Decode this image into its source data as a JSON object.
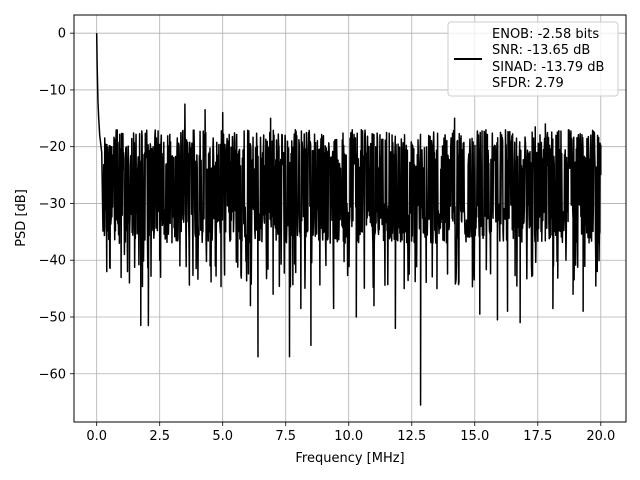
{
  "chart_data": {
    "type": "line",
    "title": "",
    "xlabel": "Frequency [MHz]",
    "ylabel": "PSD [dB]",
    "xlim": [
      -0.9,
      21.0
    ],
    "ylim": [
      -68.5,
      3.2
    ],
    "x_ticks": [
      0.0,
      2.5,
      5.0,
      7.5,
      10.0,
      12.5,
      15.0,
      17.5,
      20.0
    ],
    "x_tick_labels": [
      "0.0",
      "2.5",
      "5.0",
      "7.5",
      "10.0",
      "12.5",
      "15.0",
      "17.5",
      "20.0"
    ],
    "y_ticks": [
      0,
      -10,
      -20,
      -30,
      -40,
      -50,
      -60
    ],
    "y_tick_labels": [
      "0",
      "−10",
      "−20",
      "−30",
      "−40",
      "−50",
      "−60"
    ],
    "grid": true,
    "legend_position": "top-right",
    "legend_text": [
      "ENOB: -2.58 bits",
      "SNR: -13.65 dB",
      "SINAD: -13.79 dB",
      "SFDR: 2.79"
    ],
    "series_color": "#000000",
    "series": [
      {
        "x_range": [
          0.0,
          20.0
        ],
        "noise_band_db": [
          -37,
          -17
        ],
        "points": [
          {
            "x": 0.0,
            "y": 0.0
          },
          {
            "x": 0.02,
            "y": -6
          },
          {
            "x": 0.05,
            "y": -12
          },
          {
            "x": 0.08,
            "y": -15
          },
          {
            "x": 0.12,
            "y": -18
          },
          {
            "x": 0.2,
            "y": -21
          },
          {
            "x": 0.3,
            "y": -29
          },
          {
            "x": 0.4,
            "y": -42
          },
          {
            "x": 0.6,
            "y": -20
          },
          {
            "x": 0.9,
            "y": -37
          },
          {
            "x": 1.1,
            "y": -39
          },
          {
            "x": 1.3,
            "y": -44
          },
          {
            "x": 1.75,
            "y": -51.5
          },
          {
            "x": 2.05,
            "y": -51.5
          },
          {
            "x": 2.5,
            "y": -40
          },
          {
            "x": 3.3,
            "y": -41
          },
          {
            "x": 3.5,
            "y": -12.5
          },
          {
            "x": 4.0,
            "y": -40
          },
          {
            "x": 4.3,
            "y": -13.5
          },
          {
            "x": 4.5,
            "y": -41
          },
          {
            "x": 5.0,
            "y": -14
          },
          {
            "x": 6.1,
            "y": -48
          },
          {
            "x": 6.4,
            "y": -57
          },
          {
            "x": 6.9,
            "y": -15
          },
          {
            "x": 7.0,
            "y": -46
          },
          {
            "x": 7.65,
            "y": -57
          },
          {
            "x": 8.1,
            "y": -48.5
          },
          {
            "x": 8.5,
            "y": -55
          },
          {
            "x": 9.4,
            "y": -48.5
          },
          {
            "x": 10.3,
            "y": -50
          },
          {
            "x": 10.5,
            "y": -17
          },
          {
            "x": 11.0,
            "y": -48
          },
          {
            "x": 11.5,
            "y": -17.5
          },
          {
            "x": 11.85,
            "y": -52
          },
          {
            "x": 12.2,
            "y": -45
          },
          {
            "x": 12.85,
            "y": -65.5
          },
          {
            "x": 13.5,
            "y": -45
          },
          {
            "x": 14.2,
            "y": -15
          },
          {
            "x": 15.2,
            "y": -49.5
          },
          {
            "x": 15.9,
            "y": -50.5
          },
          {
            "x": 16.3,
            "y": -49
          },
          {
            "x": 16.8,
            "y": -51
          },
          {
            "x": 17.4,
            "y": -16.5
          },
          {
            "x": 17.8,
            "y": -16
          },
          {
            "x": 18.1,
            "y": -48.5
          },
          {
            "x": 18.9,
            "y": -46
          },
          {
            "x": 19.3,
            "y": -49
          },
          {
            "x": 19.8,
            "y": -40
          },
          {
            "x": 20.0,
            "y": -25
          }
        ]
      }
    ]
  }
}
